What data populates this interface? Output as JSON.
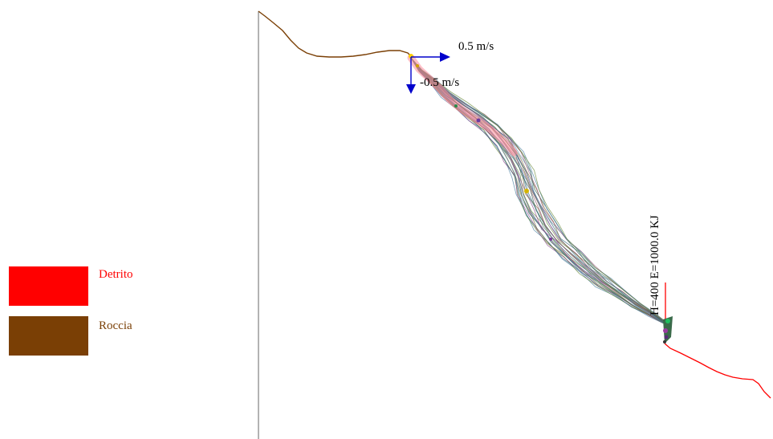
{
  "legend": {
    "items": [
      {
        "label": "Detrito",
        "color": "#ff0000",
        "text_color": "#ff0000"
      },
      {
        "label": "Roccia",
        "color": "#7a3f05",
        "text_color": "#7a3f05"
      }
    ]
  },
  "vectors": {
    "horizontal_label": "0.5 m/s",
    "vertical_label": "-0.5 m/s",
    "color": "#0000cc"
  },
  "barrier": {
    "label": "H=400  E=1000.0 KJ",
    "color": "#ff0000"
  },
  "colors": {
    "roccia_profile": "#7a3f05",
    "detrito_profile": "#ff0000",
    "axis": "#808080",
    "trajectory_palette": [
      "#4a7fa0",
      "#6a8a3a",
      "#8c4a8c",
      "#3a6a7a",
      "#7a6a3a",
      "#5a8aa0",
      "#2f5f4f",
      "#9a5a7a"
    ]
  }
}
